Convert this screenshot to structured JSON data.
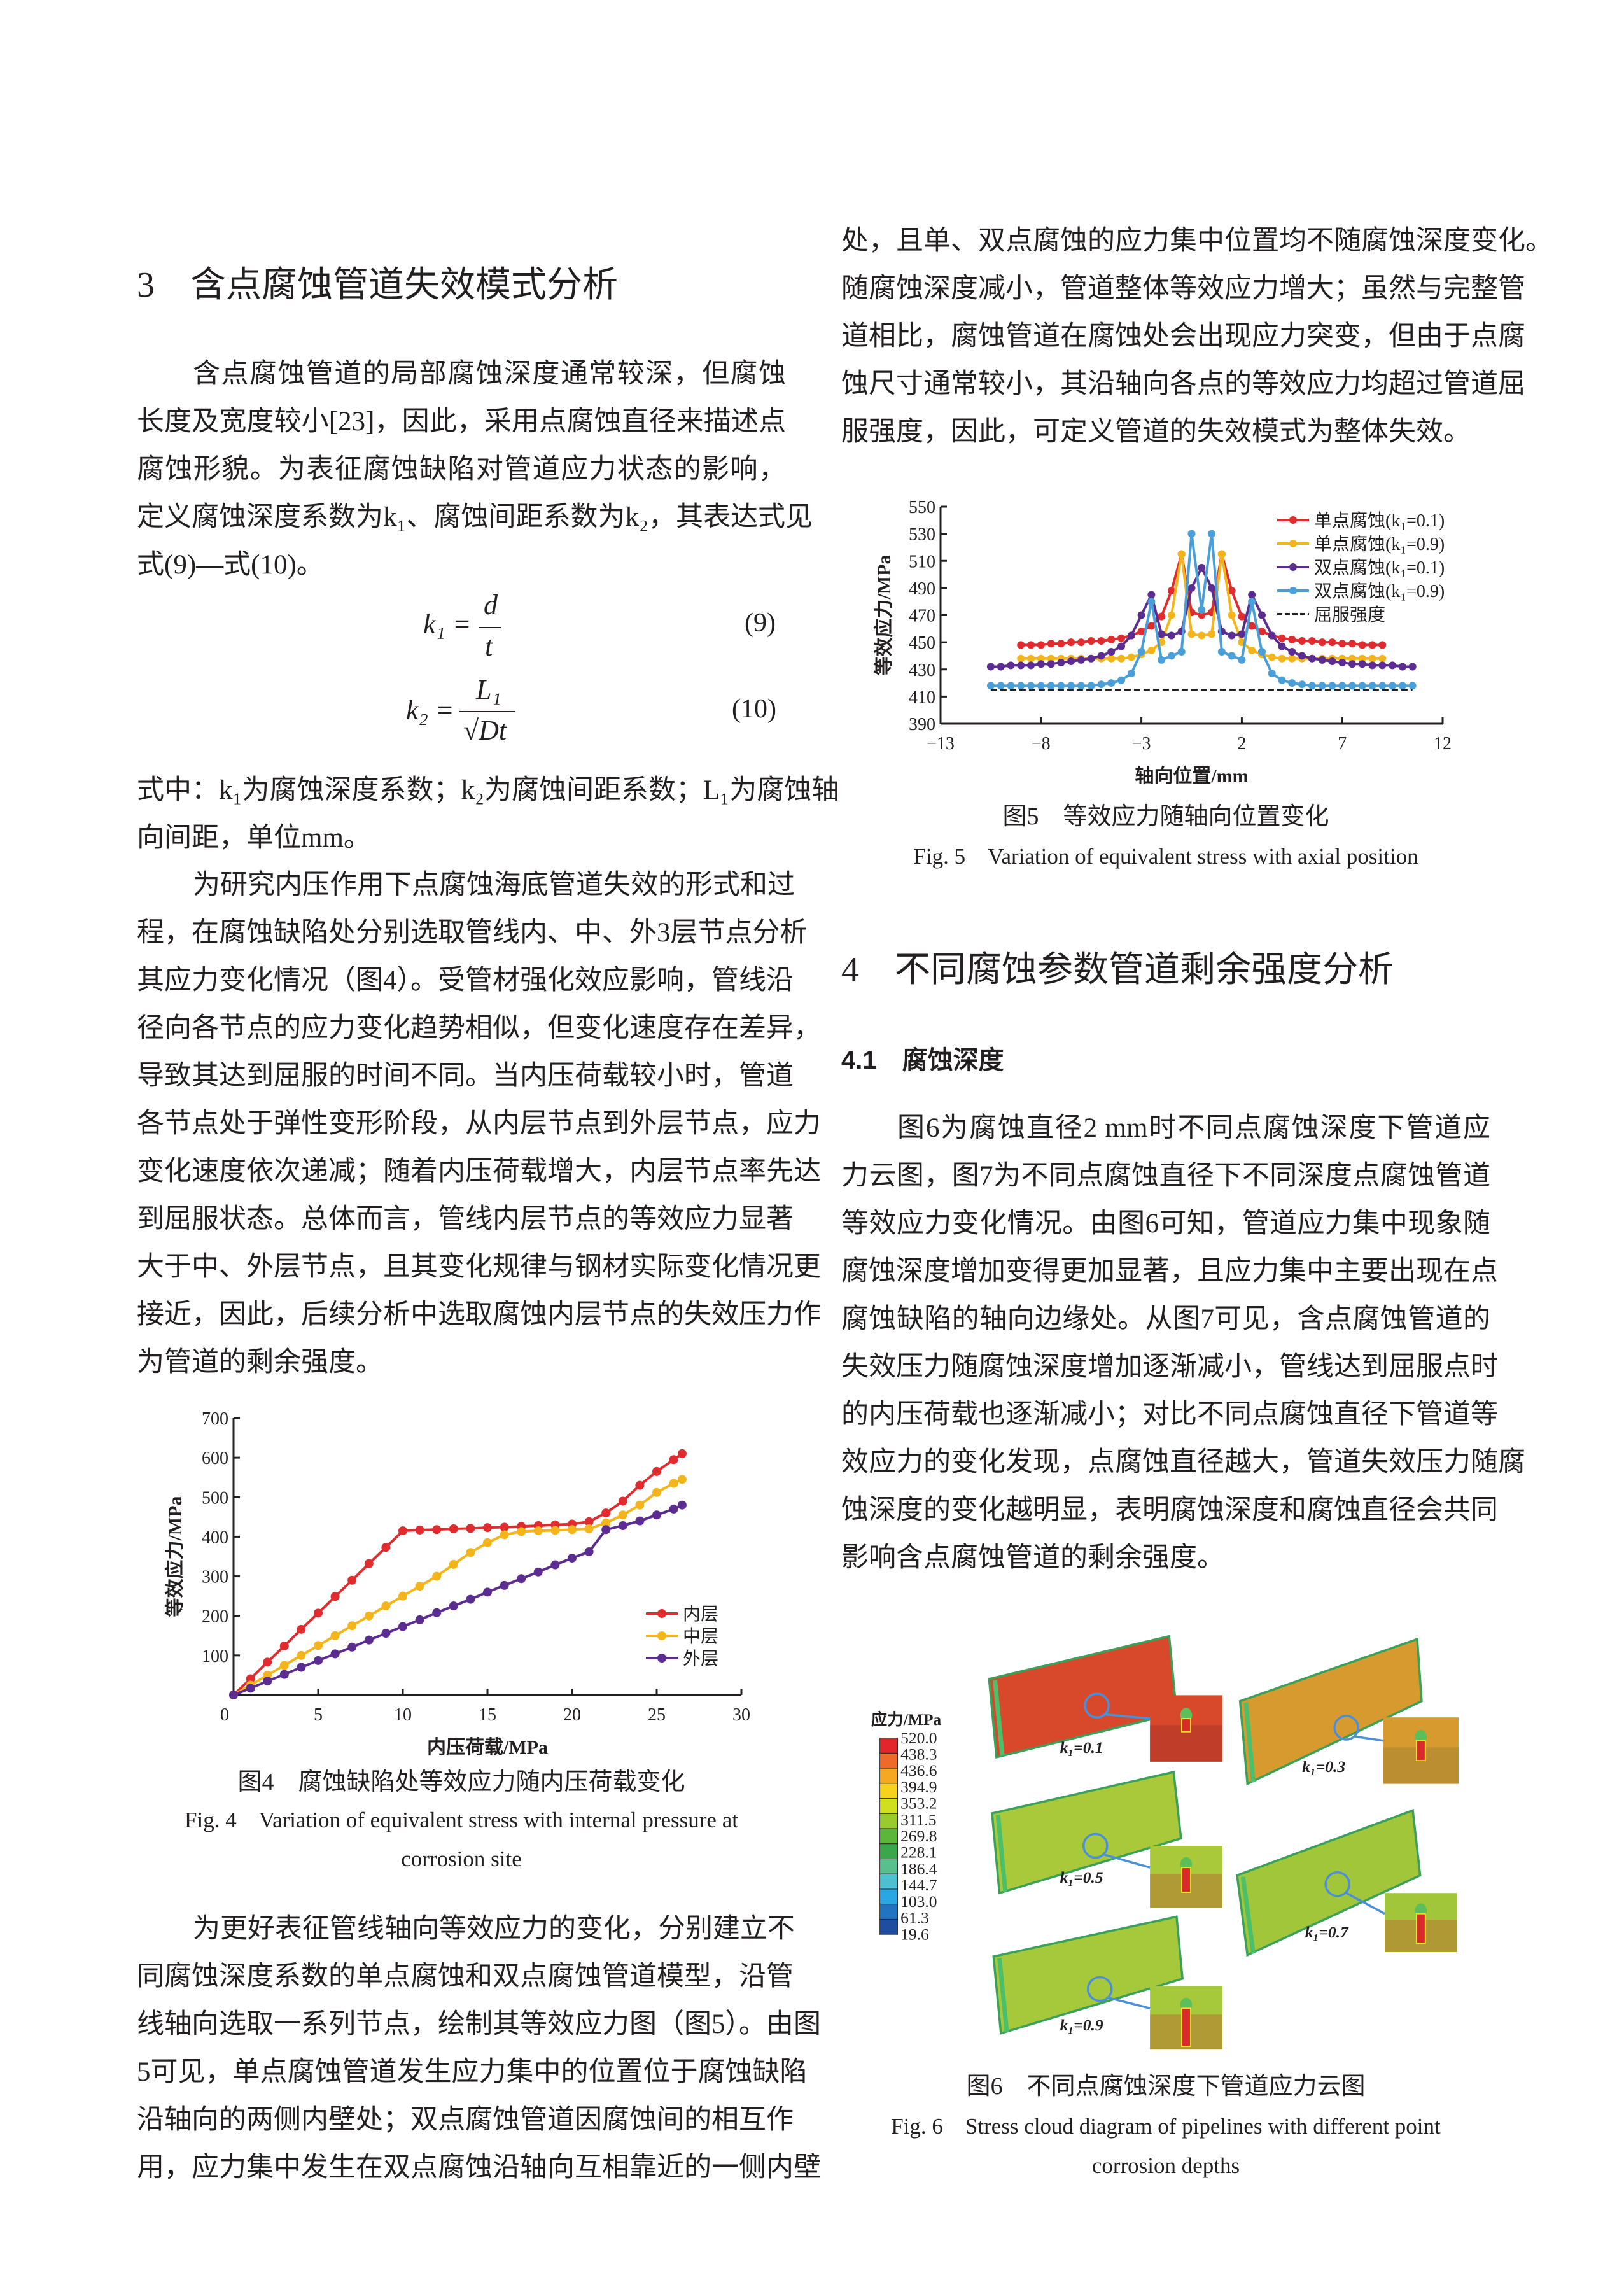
{
  "section3": {
    "heading": "3　含点腐蚀管道失效模式分析",
    "para1": [
      "含点腐蚀管道的局部腐蚀深度通常较深，但腐蚀",
      "长度及宽度较小[23]，因此，采用点腐蚀直径来描述点",
      "腐蚀形貌。为表征腐蚀缺陷对管道应力状态的影响，",
      "定义腐蚀深度系数为k₁、腐蚀间距系数为k₂，其表达式见",
      "式(9)—式(10)。"
    ],
    "eq9": {
      "lhs": "k₁ =",
      "num": "d",
      "den": "t",
      "no": "(9)"
    },
    "eq10": {
      "lhs": "k₂ =",
      "num": "L₁",
      "den": "√Dt",
      "no": "(10)"
    },
    "where": [
      "式中：k₁为腐蚀深度系数；k₂为腐蚀间距系数；L₁为腐蚀轴",
      "向间距，单位mm。"
    ],
    "para2": [
      "为研究内压作用下点腐蚀海底管道失效的形式和过",
      "程，在腐蚀缺陷处分别选取管线内、中、外3层节点分析",
      "其应力变化情况（图4）。受管材强化效应影响，管线沿",
      "径向各节点的应力变化趋势相似，但变化速度存在差异，",
      "导致其达到屈服的时间不同。当内压荷载较小时，管道",
      "各节点处于弹性变形阶段，从内层节点到外层节点，应力",
      "变化速度依次递减；随着内压荷载增大，内层节点率先达",
      "到屈服状态。总体而言，管线内层节点的等效应力显著",
      "大于中、外层节点，且其变化规律与钢材实际变化情况更",
      "接近，因此，后续分析中选取腐蚀内层节点的失效压力作",
      "为管道的剩余强度。"
    ],
    "fig4_caption_cn": "图4　腐蚀缺陷处等效应力随内压荷载变化",
    "fig4_caption_en": [
      "Fig. 4　Variation of equivalent stress with internal pressure at",
      "corrosion site"
    ],
    "para3": [
      "为更好表征管线轴向等效应力的变化，分别建立不",
      "同腐蚀深度系数的单点腐蚀和双点腐蚀管道模型，沿管",
      "线轴向选取一系列节点，绘制其等效应力图（图5）。由图",
      "5可见，单点腐蚀管道发生应力集中的位置位于腐蚀缺陷",
      "沿轴向的两侧内壁处；双点腐蚀管道因腐蚀间的相互作",
      "用，应力集中发生在双点腐蚀沿轴向互相靠近的一侧内壁"
    ],
    "para3_cont": [
      "处，且单、双点腐蚀的应力集中位置均不随腐蚀深度变化。",
      "随腐蚀深度减小，管道整体等效应力增大；虽然与完整管",
      "道相比，腐蚀管道在腐蚀处会出现应力突变，但由于点腐",
      "蚀尺寸通常较小，其沿轴向各点的等效应力均超过管道屈",
      "服强度，因此，可定义管道的失效模式为整体失效。"
    ],
    "fig5_caption_cn": "图5　等效应力随轴向位置变化",
    "fig5_caption_en": "Fig. 5　Variation of equivalent stress with axial position"
  },
  "section4": {
    "heading": "4　不同腐蚀参数管道剩余强度分析",
    "sub41": "4.1　腐蚀深度",
    "para1": [
      "图6为腐蚀直径2 mm时不同点腐蚀深度下管道应",
      "力云图，图7为不同点腐蚀直径下不同深度点腐蚀管道",
      "等效应力变化情况。由图6可知，管道应力集中现象随",
      "腐蚀深度增加变得更加显著，且应力集中主要出现在点",
      "腐蚀缺陷的轴向边缘处。从图7可见，含点腐蚀管道的",
      "失效压力随腐蚀深度增加逐渐减小，管线达到屈服点时",
      "的内压荷载也逐渐减小；对比不同点腐蚀直径下管道等",
      "效应力的变化发现，点腐蚀直径越大，管道失效压力随腐",
      "蚀深度的变化越明显，表明腐蚀深度和腐蚀直径会共同",
      "影响含点腐蚀管道的剩余强度。"
    ],
    "fig6_caption_cn": "图6　不同点腐蚀深度下管道应力云图",
    "fig6_caption_en": [
      "Fig. 6　Stress cloud diagram of pipelines with different point",
      "corrosion depths"
    ]
  },
  "fig6": {
    "colorbar_title": "应力/MPa",
    "colorbar_labels": [
      "520.0",
      "438.3",
      "436.6",
      "394.9",
      "353.2",
      "311.5",
      "269.8",
      "228.1",
      "186.4",
      "144.7",
      "103.0",
      "61.3",
      "19.6"
    ],
    "colorbar_colors": [
      "#e3262b",
      "#ee6a2a",
      "#f7a823",
      "#f4d21e",
      "#cfe020",
      "#98cc2e",
      "#5bb63a",
      "#3ca64b",
      "#57c08c",
      "#4cc0cf",
      "#29a7e3",
      "#2274c0",
      "#1f4ea0"
    ],
    "panels": [
      {
        "label": "k₁=0.1",
        "color": "#d8482a"
      },
      {
        "label": "k₁=0.3",
        "color": "#d69a2e"
      },
      {
        "label": "k₁=0.5",
        "color": "#a9c93a"
      },
      {
        "label": "k₁=0.7",
        "color": "#a2c63a"
      },
      {
        "label": "k₁=0.9",
        "color": "#a6c93b"
      }
    ]
  },
  "chart_data": [
    {
      "type": "line",
      "xlabel": "内压荷载/MPa",
      "ylabel": "等效应力/MPa",
      "xlim": [
        0,
        30
      ],
      "ylim": [
        0,
        700
      ],
      "xticks": [
        "0",
        "5",
        "10",
        "15",
        "20",
        "25",
        "30"
      ],
      "yticks": [
        "100",
        "200",
        "300",
        "400",
        "500",
        "600",
        "700"
      ],
      "grid": false,
      "legend": "bottom-right",
      "x": [
        0,
        1,
        2,
        3,
        4,
        5,
        6,
        7,
        8,
        9,
        10,
        11,
        12,
        13,
        14,
        15,
        16,
        17,
        18,
        19,
        20,
        21,
        22,
        23,
        24,
        25,
        26,
        26.5
      ],
      "series": [
        {
          "name": "内层",
          "color": "#e02b2f",
          "values": [
            0,
            41,
            83,
            124,
            166,
            207,
            249,
            290,
            332,
            373,
            415,
            417,
            418,
            420,
            421,
            423,
            424,
            426,
            428,
            430,
            432,
            438,
            460,
            490,
            530,
            565,
            595,
            610
          ]
        },
        {
          "name": "中层",
          "color": "#f4b51c",
          "values": [
            0,
            25,
            50,
            75,
            100,
            125,
            150,
            175,
            200,
            225,
            250,
            275,
            300,
            330,
            360,
            385,
            405,
            413,
            415,
            416,
            418,
            420,
            435,
            455,
            480,
            512,
            535,
            545
          ]
        },
        {
          "name": "外层",
          "color": "#5c2d91",
          "values": [
            0,
            17,
            35,
            52,
            70,
            87,
            104,
            121,
            139,
            156,
            173,
            190,
            208,
            225,
            242,
            260,
            277,
            294,
            311,
            329,
            346,
            362,
            418,
            428,
            440,
            455,
            470,
            480
          ]
        }
      ]
    },
    {
      "type": "line",
      "xlabel": "轴向位置/mm",
      "ylabel": "等效应力/MPa",
      "xlim": [
        -13,
        12
      ],
      "ylim": [
        390,
        550
      ],
      "xticks": [
        "−13",
        "−8",
        "−3",
        "2",
        "7",
        "12"
      ],
      "yticks": [
        "390",
        "410",
        "430",
        "450",
        "470",
        "490",
        "510",
        "530",
        "550"
      ],
      "grid": false,
      "legend": "top-right",
      "series": [
        {
          "name": "单点腐蚀(k₁=0.1)",
          "color": "#e02b2f",
          "x": [
            -9,
            -8.5,
            -8,
            -7.5,
            -7,
            -6.5,
            -6,
            -5.5,
            -5,
            -4.5,
            -4,
            -3.5,
            -3,
            -2.5,
            -2,
            -1.5,
            -1,
            -0.5,
            0,
            0.5,
            1,
            1.5,
            2,
            2.5,
            3,
            3.5,
            4,
            4.5,
            5,
            5.5,
            6,
            6.5,
            7,
            7.5,
            8,
            8.5,
            9
          ],
          "values": [
            448,
            448,
            448,
            449,
            449,
            450,
            450,
            451,
            451,
            452,
            453,
            455,
            458,
            462,
            469,
            488,
            515,
            472,
            470,
            472,
            515,
            488,
            469,
            462,
            458,
            455,
            453,
            452,
            451,
            451,
            450,
            450,
            449,
            449,
            448,
            448,
            448
          ]
        },
        {
          "name": "单点腐蚀(k₁=0.9)",
          "color": "#f4b51c",
          "x": [
            -9,
            -8.5,
            -8,
            -7.5,
            -7,
            -6.5,
            -6,
            -5.5,
            -5,
            -4.5,
            -4,
            -3.5,
            -3,
            -2.5,
            -2,
            -1.5,
            -1,
            -0.5,
            0,
            0.5,
            1,
            1.5,
            2,
            2.5,
            3,
            3.5,
            4,
            4.5,
            5,
            5.5,
            6,
            6.5,
            7,
            7.5,
            8,
            8.5,
            9
          ],
          "values": [
            438,
            438,
            438,
            438,
            438,
            438,
            438,
            438,
            438,
            438,
            438,
            439,
            441,
            444,
            450,
            470,
            515,
            456,
            455,
            456,
            515,
            470,
            450,
            444,
            441,
            439,
            438,
            438,
            438,
            438,
            438,
            438,
            438,
            438,
            438,
            438,
            438
          ]
        },
        {
          "name": "双点腐蚀(k₁=0.1)",
          "color": "#5c2d91",
          "x": [
            -10.5,
            -10,
            -9.5,
            -9,
            -8.5,
            -8,
            -7.5,
            -7,
            -6.5,
            -6,
            -5.5,
            -5,
            -4.5,
            -4,
            -3.5,
            -3,
            -2.5,
            -2,
            -1.5,
            -1,
            -0.5,
            0,
            0.5,
            1,
            1.5,
            2,
            2.5,
            3,
            3.5,
            4,
            4.5,
            5,
            5.5,
            6,
            6.5,
            7,
            7.5,
            8,
            8.5,
            9,
            9.5,
            10,
            10.5
          ],
          "values": [
            432,
            432,
            433,
            433,
            433,
            434,
            434,
            435,
            436,
            437,
            438,
            440,
            443,
            447,
            455,
            470,
            485,
            456,
            455,
            458,
            490,
            505,
            490,
            458,
            455,
            456,
            485,
            470,
            455,
            447,
            443,
            440,
            438,
            437,
            436,
            435,
            434,
            434,
            433,
            433,
            433,
            432,
            432
          ]
        },
        {
          "name": "双点腐蚀(k₁=0.9)",
          "color": "#4a9fd8",
          "x": [
            -10.5,
            -10,
            -9.5,
            -9,
            -8.5,
            -8,
            -7.5,
            -7,
            -6.5,
            -6,
            -5.5,
            -5,
            -4.5,
            -4,
            -3.5,
            -3,
            -2.5,
            -2,
            -1.5,
            -1,
            -0.5,
            0,
            0.5,
            1,
            1.5,
            2,
            2.5,
            3,
            3.5,
            4,
            4.5,
            5,
            5.5,
            6,
            6.5,
            7,
            7.5,
            8,
            8.5,
            9,
            9.5,
            10,
            10.5
          ],
          "values": [
            418,
            418,
            418,
            418,
            418,
            418,
            418,
            418,
            418,
            418,
            418,
            419,
            420,
            422,
            427,
            443,
            480,
            437,
            440,
            443,
            530,
            474,
            530,
            443,
            440,
            437,
            480,
            443,
            427,
            422,
            420,
            419,
            418,
            418,
            418,
            418,
            418,
            418,
            418,
            418,
            418,
            418,
            418
          ]
        },
        {
          "name": "屈服强度",
          "color": "#231f20",
          "dashed": true,
          "x": [
            -10.5,
            10.5
          ],
          "values": [
            415,
            415
          ]
        }
      ]
    }
  ]
}
